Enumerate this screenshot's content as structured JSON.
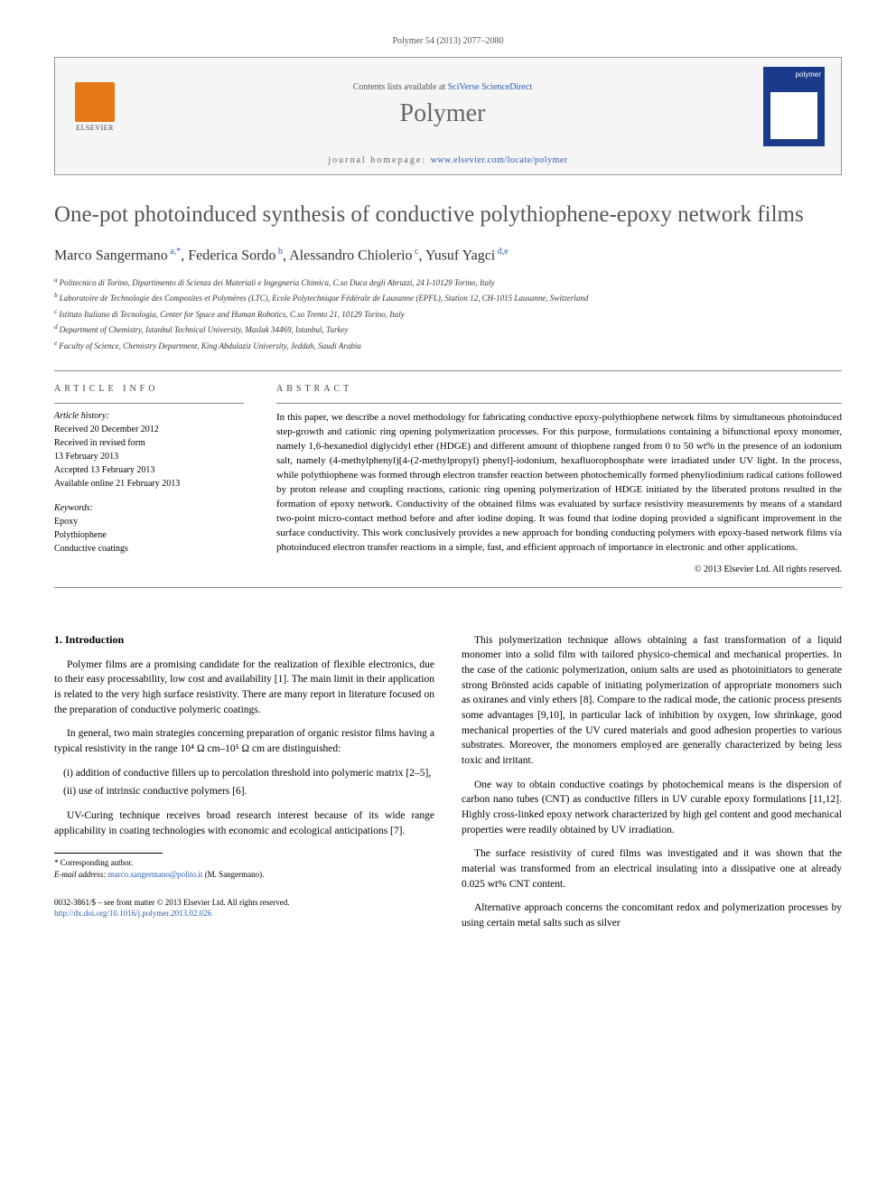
{
  "journal_ref": "Polymer 54 (2013) 2077–2080",
  "header": {
    "contents_prefix": "Contents lists available at ",
    "contents_link": "SciVerse ScienceDirect",
    "journal_name": "Polymer",
    "homepage_prefix": "journal homepage: ",
    "homepage_link": "www.elsevier.com/locate/polymer",
    "publisher_label": "ELSEVIER"
  },
  "title": "One-pot photoinduced synthesis of conductive polythiophene-epoxy network films",
  "authors_html": "Marco Sangermano|a,*|, Federica Sordo|b|, Alessandro Chiolerio|c|, Yusuf Yagci|d,e",
  "authors": [
    {
      "name": "Marco Sangermano",
      "sup": "a,*"
    },
    {
      "name": "Federica Sordo",
      "sup": "b"
    },
    {
      "name": "Alessandro Chiolerio",
      "sup": "c"
    },
    {
      "name": "Yusuf Yagci",
      "sup": "d,e"
    }
  ],
  "affiliations": [
    {
      "key": "a",
      "text": "Politecnico di Torino, Dipartimento di Scienza dei Materiali e Ingegneria Chimica, C.so Duca degli Abruzzi, 24 I-10129 Torino, Italy"
    },
    {
      "key": "b",
      "text": "Laboratoire de Technologie des Composites et Polymères (LTC), Ecole Polytechnique Fédérale de Lausanne (EPFL), Station 12, CH-1015 Lausanne, Switzerland"
    },
    {
      "key": "c",
      "text": "Istituto Italiano di Tecnologia, Center for Space and Human Robotics, C.so Trento 21, 10129 Torino, Italy"
    },
    {
      "key": "d",
      "text": "Department of Chemistry, Istanbul Technical University, Maslak 34469, Istanbul, Turkey"
    },
    {
      "key": "e",
      "text": "Faculty of Science, Chemistry Department, King Abdulaziz University, Jeddah, Saudi Arabia"
    }
  ],
  "article_info_label": "ARTICLE INFO",
  "abstract_label": "ABSTRACT",
  "history_label": "Article history:",
  "history": [
    "Received 20 December 2012",
    "Received in revised form",
    "13 February 2013",
    "Accepted 13 February 2013",
    "Available online 21 February 2013"
  ],
  "keywords_label": "Keywords:",
  "keywords": [
    "Epoxy",
    "Polythiophene",
    "Conductive coatings"
  ],
  "abstract": "In this paper, we describe a novel methodology for fabricating conductive epoxy-polythiophene network films by simultaneous photoinduced step-growth and cationic ring opening polymerization processes. For this purpose, formulations containing a bifunctional epoxy monomer, namely 1,6-hexanediol diglycidyl ether (HDGE) and different amount of thiophene ranged from 0 to 50 wt% in the presence of an iodonium salt, namely (4-methylphenyl)[4-(2-methylpropyl) phenyl]-iodonium, hexafluorophosphate were irradiated under UV light. In the process, while polythiophene was formed through electron transfer reaction between photochemically formed phenyliodinium radical cations followed by proton release and coupling reactions, cationic ring opening polymerization of HDGE initiated by the liberated protons resulted in the formation of epoxy network. Conductivity of the obtained films was evaluated by surface resistivity measurements by means of a standard two-point micro-contact method before and after iodine doping. It was found that iodine doping provided a significant improvement in the surface conductivity. This work conclusively provides a new approach for bonding conducting polymers with epoxy-based network films via photoinduced electron transfer reactions in a simple, fast, and efficient approach of importance in electronic and other applications.",
  "copyright": "© 2013 Elsevier Ltd. All rights reserved.",
  "section1_heading": "1. Introduction",
  "col1": {
    "p1": "Polymer films are a promising candidate for the realization of flexible electronics, due to their easy processability, low cost and availability [1]. The main limit in their application is related to the very high surface resistivity. There are many report in literature focused on the preparation of conductive polymeric coatings.",
    "p2": "In general, two main strategies concerning preparation of organic resistor films having a typical resistivity in the range 10⁴ Ω cm–10⁵ Ω cm are distinguished:",
    "li1": "(i) addition of conductive fillers up to percolation threshold into polymeric matrix [2–5],",
    "li2": "(ii) use of intrinsic conductive polymers [6].",
    "p3": "UV-Curing technique receives broad research interest because of its wide range applicability in coating technologies with economic and ecological anticipations [7]."
  },
  "col2": {
    "p1": "This polymerization technique allows obtaining a fast transformation of a liquid monomer into a solid film with tailored physico-chemical and mechanical properties. In the case of the cationic polymerization, onium salts are used as photoinitiators to generate strong Brönsted acids capable of initiating polymerization of appropriate monomers such as oxiranes and vinly ethers [8]. Compare to the radical mode, the cationic process presents some advantages [9,10], in particular lack of inhibition by oxygen, low shrinkage, good mechanical properties of the UV cured materials and good adhesion properties to various substrates. Moreover, the monomers employed are generally characterized by being less toxic and irritant.",
    "p2": "One way to obtain conductive coatings by photochemical means is the dispersion of carbon nano tubes (CNT) as conductive fillers in UV curable epoxy formulations [11,12]. Highly cross-linked epoxy network characterized by high gel content and good mechanical properties were readily obtained by UV irradiation.",
    "p3": "The surface resistivity of cured films was investigated and it was shown that the material was transformed from an electrical insulating into a dissipative one at already 0.025 wt% CNT content.",
    "p4": "Alternative approach concerns the concomitant redox and polymerization processes by using certain metal salts such as silver"
  },
  "corresponding": {
    "label": "* Corresponding author.",
    "email_label": "E-mail address: ",
    "email": "marco.sangermano@polito.it",
    "email_suffix": " (M. Sangermano)."
  },
  "footer": {
    "line1": "0032-3861/$ – see front matter © 2013 Elsevier Ltd. All rights reserved.",
    "doi": "http://dx.doi.org/10.1016/j.polymer.2013.02.026"
  },
  "colors": {
    "link": "#2a5db0",
    "heading_gray": "#555555",
    "elsevier_orange": "#e67817",
    "cover_blue": "#1a3a8a"
  }
}
